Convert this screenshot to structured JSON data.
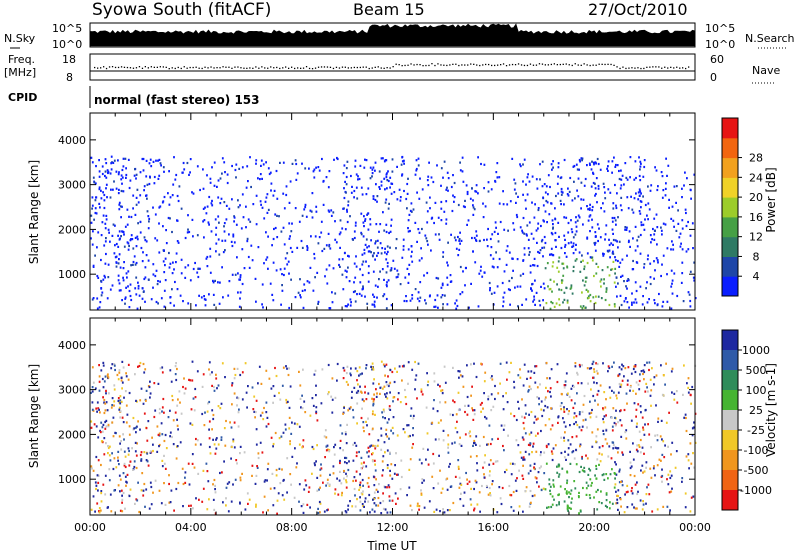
{
  "header": {
    "station": "Syowa South (fitACF)",
    "beam": "Beam 15",
    "date": "27/Oct/2010"
  },
  "panels": {
    "nsky": {
      "left_label": "N.Sky",
      "left_ticks": [
        "10^5",
        "10^0"
      ],
      "right_ticks": [
        "10^5",
        "10^0"
      ],
      "right_label": "N.Search"
    },
    "freq": {
      "left_label_line1": "Freq.",
      "left_label_line2": "[MHz]",
      "left_ticks": [
        "18",
        "8"
      ],
      "right_ticks": [
        "60",
        "0"
      ],
      "right_label": "Nave"
    },
    "cpid": {
      "label": "CPID",
      "text": "normal (fast stereo) 153"
    }
  },
  "chart_data": [
    {
      "type": "heatmap",
      "name": "power",
      "ylabel": "Slant Range [km]",
      "xlabel": "",
      "y_ticks": [
        "1000",
        "2000",
        "3000",
        "4000"
      ],
      "y_tick_values": [
        1000,
        2000,
        3000,
        4000
      ],
      "ylim": [
        200,
        4600
      ],
      "xlim_hours": [
        0,
        24
      ],
      "colorbar": {
        "label": "Power [dB]",
        "tick_labels": [
          "4",
          "8",
          "12",
          "16",
          "20",
          "24",
          "28"
        ],
        "tick_values": [
          4,
          8,
          12,
          16,
          20,
          24,
          28
        ],
        "range": [
          0,
          30
        ],
        "colors": [
          "#0a1eff",
          "#1e46a8",
          "#2f7a64",
          "#46a045",
          "#9ccc2a",
          "#f0d228",
          "#f2a11e",
          "#f2650f",
          "#e61414"
        ]
      }
    },
    {
      "type": "heatmap",
      "name": "velocity",
      "ylabel": "Slant Range [km]",
      "xlabel": "Time UT",
      "x_ticks": [
        "00:00",
        "04:00",
        "08:00",
        "12:00",
        "16:00",
        "20:00",
        "00:00"
      ],
      "x_tick_hours": [
        0,
        4,
        8,
        12,
        16,
        20,
        24
      ],
      "y_ticks": [
        "1000",
        "2000",
        "3000",
        "4000"
      ],
      "y_tick_values": [
        1000,
        2000,
        3000,
        4000
      ],
      "ylim": [
        200,
        4600
      ],
      "colorbar": {
        "label": "Velocity [m s-1]",
        "tick_labels": [
          "1000",
          "500",
          "100",
          "25",
          "-25",
          "-100",
          "-500",
          "-1000"
        ],
        "colors": [
          "#1e28a0",
          "#2f5aa8",
          "#2f8c5a",
          "#46b432",
          "#c8c8c8",
          "#f0c828",
          "#f0961e",
          "#f06414",
          "#e61414"
        ]
      }
    }
  ]
}
